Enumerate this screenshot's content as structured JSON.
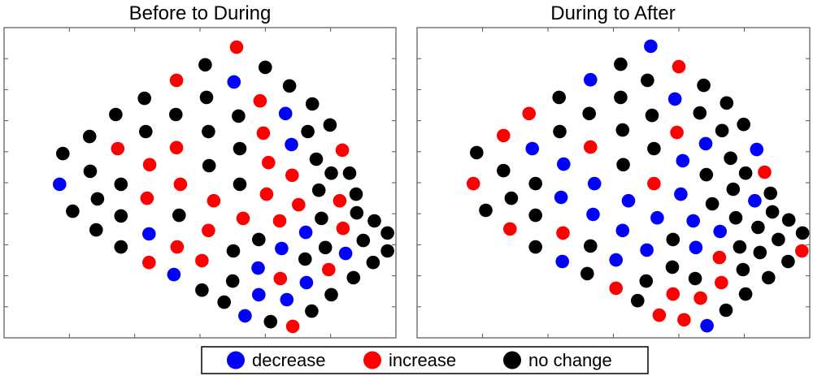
{
  "legend": {
    "position": "bottom-center",
    "items": [
      {
        "label": "decrease",
        "color": "#0000ff"
      },
      {
        "label": "increase",
        "color": "#ff0000"
      },
      {
        "label": "no change",
        "color": "#000000"
      }
    ]
  },
  "chart_data": [
    {
      "type": "scatter",
      "title": "Before to During",
      "xlabel": "",
      "ylabel": "",
      "xlim": [
        0,
        6
      ],
      "ylim": [
        0,
        10
      ],
      "x_ticks": [
        0,
        1,
        2,
        3,
        4,
        5,
        6
      ],
      "y_ticks": [
        0,
        1,
        2,
        3,
        4,
        5,
        6,
        7,
        8,
        9,
        10
      ],
      "tick_labels_shown": false,
      "grid": false,
      "points": [
        [
          3.08,
          8.8,
          "no change"
        ],
        [
          2.64,
          8.3,
          "increase"
        ],
        [
          2.15,
          7.72,
          "no change"
        ],
        [
          1.71,
          7.2,
          "no change"
        ],
        [
          2.63,
          7.2,
          "no change"
        ],
        [
          2.17,
          6.65,
          "no change"
        ],
        [
          1.31,
          6.49,
          "no change"
        ],
        [
          0.9,
          5.94,
          "no change"
        ],
        [
          1.74,
          6.1,
          "increase"
        ],
        [
          2.64,
          6.13,
          "increase"
        ],
        [
          2.23,
          5.58,
          "increase"
        ],
        [
          1.32,
          5.37,
          "no change"
        ],
        [
          0.85,
          4.95,
          "decrease"
        ],
        [
          1.79,
          4.95,
          "no change"
        ],
        [
          2.7,
          4.95,
          "increase"
        ],
        [
          1.43,
          4.48,
          "no change"
        ],
        [
          2.19,
          4.5,
          "increase"
        ],
        [
          1.05,
          4.08,
          "no change"
        ],
        [
          1.79,
          3.93,
          "no change"
        ],
        [
          2.68,
          3.95,
          "no change"
        ],
        [
          1.41,
          3.48,
          "no change"
        ],
        [
          2.22,
          3.35,
          "decrease"
        ],
        [
          1.79,
          2.93,
          "no change"
        ],
        [
          2.65,
          2.93,
          "increase"
        ],
        [
          2.22,
          2.43,
          "increase"
        ],
        [
          2.6,
          2.04,
          "decrease"
        ],
        [
          3.03,
          2.49,
          "increase"
        ],
        [
          3.03,
          1.54,
          "no change"
        ],
        [
          3.56,
          9.37,
          "increase"
        ],
        [
          4.0,
          8.72,
          "no change"
        ],
        [
          3.52,
          8.25,
          "decrease"
        ],
        [
          4.37,
          8.12,
          "no change"
        ],
        [
          3.1,
          7.75,
          "no change"
        ],
        [
          3.92,
          7.64,
          "increase"
        ],
        [
          4.72,
          7.54,
          "no change"
        ],
        [
          4.31,
          7.23,
          "decrease"
        ],
        [
          3.59,
          7.15,
          "no change"
        ],
        [
          3.13,
          6.65,
          "no change"
        ],
        [
          3.97,
          6.6,
          "increase"
        ],
        [
          4.65,
          6.65,
          "no change"
        ],
        [
          4.99,
          6.86,
          "no change"
        ],
        [
          4.4,
          6.23,
          "decrease"
        ],
        [
          3.61,
          6.1,
          "no change"
        ],
        [
          5.18,
          6.05,
          "increase"
        ],
        [
          3.14,
          5.55,
          "no change"
        ],
        [
          4.05,
          5.65,
          "increase"
        ],
        [
          4.78,
          5.76,
          "no change"
        ],
        [
          4.41,
          5.24,
          "increase"
        ],
        [
          5.01,
          5.31,
          "no change"
        ],
        [
          5.29,
          5.31,
          "no change"
        ],
        [
          3.61,
          4.95,
          "no change"
        ],
        [
          4.02,
          4.63,
          "increase"
        ],
        [
          4.82,
          4.76,
          "no change"
        ],
        [
          5.39,
          4.63,
          "no change"
        ],
        [
          3.21,
          4.42,
          "increase"
        ],
        [
          4.51,
          4.29,
          "increase"
        ],
        [
          5.14,
          4.42,
          "increase"
        ],
        [
          5.4,
          4.03,
          "no change"
        ],
        [
          3.66,
          3.85,
          "increase"
        ],
        [
          4.22,
          3.77,
          "increase"
        ],
        [
          4.86,
          3.85,
          "no change"
        ],
        [
          5.67,
          3.77,
          "no change"
        ],
        [
          3.13,
          3.46,
          "increase"
        ],
        [
          3.9,
          3.17,
          "no change"
        ],
        [
          4.62,
          3.4,
          "decrease"
        ],
        [
          5.19,
          3.53,
          "increase"
        ],
        [
          5.87,
          3.38,
          "no change"
        ],
        [
          5.5,
          3.14,
          "no change"
        ],
        [
          3.51,
          2.8,
          "no change"
        ],
        [
          4.25,
          2.88,
          "decrease"
        ],
        [
          4.92,
          2.91,
          "no change"
        ],
        [
          5.23,
          2.72,
          "decrease"
        ],
        [
          5.87,
          2.8,
          "no change"
        ],
        [
          5.65,
          2.43,
          "no change"
        ],
        [
          3.89,
          2.25,
          "decrease"
        ],
        [
          4.61,
          2.54,
          "no change"
        ],
        [
          4.97,
          2.2,
          "increase"
        ],
        [
          5.35,
          1.94,
          "no change"
        ],
        [
          3.5,
          1.83,
          "no change"
        ],
        [
          4.23,
          1.91,
          "increase"
        ],
        [
          4.63,
          1.78,
          "decrease"
        ],
        [
          3.37,
          1.15,
          "no change"
        ],
        [
          3.9,
          1.39,
          "decrease"
        ],
        [
          4.33,
          1.23,
          "decrease"
        ],
        [
          5.01,
          1.39,
          "no change"
        ],
        [
          4.71,
          0.86,
          "no change"
        ],
        [
          3.69,
          0.71,
          "decrease"
        ],
        [
          4.08,
          0.52,
          "no change"
        ],
        [
          4.42,
          0.37,
          "increase"
        ]
      ]
    },
    {
      "type": "scatter",
      "title": "During to After",
      "xlabel": "",
      "ylabel": "",
      "xlim": [
        0,
        6
      ],
      "ylim": [
        0,
        10
      ],
      "x_ticks": [
        0,
        1,
        2,
        3,
        4,
        5,
        6
      ],
      "y_ticks": [
        0,
        1,
        2,
        3,
        4,
        5,
        6,
        7,
        8,
        9,
        10
      ],
      "tick_labels_shown": false,
      "grid": false,
      "points": [
        [
          2.65,
          8.32,
          "decrease"
        ],
        [
          2.17,
          7.75,
          "no change"
        ],
        [
          1.71,
          7.23,
          "increase"
        ],
        [
          2.63,
          7.23,
          "no change"
        ],
        [
          2.18,
          6.65,
          "no change"
        ],
        [
          1.32,
          6.52,
          "increase"
        ],
        [
          1.76,
          6.1,
          "decrease"
        ],
        [
          2.65,
          6.15,
          "increase"
        ],
        [
          0.91,
          5.97,
          "no change"
        ],
        [
          2.24,
          5.6,
          "decrease"
        ],
        [
          1.32,
          5.39,
          "no change"
        ],
        [
          0.86,
          4.97,
          "increase"
        ],
        [
          1.81,
          4.97,
          "no change"
        ],
        [
          2.71,
          4.97,
          "decrease"
        ],
        [
          1.44,
          4.5,
          "no change"
        ],
        [
          2.2,
          4.53,
          "decrease"
        ],
        [
          1.05,
          4.11,
          "no change"
        ],
        [
          1.81,
          3.95,
          "no change"
        ],
        [
          2.69,
          3.98,
          "decrease"
        ],
        [
          1.42,
          3.51,
          "increase"
        ],
        [
          2.23,
          3.38,
          "increase"
        ],
        [
          1.81,
          2.93,
          "no change"
        ],
        [
          2.65,
          2.96,
          "no change"
        ],
        [
          2.22,
          2.46,
          "decrease"
        ],
        [
          2.6,
          2.07,
          "no change"
        ],
        [
          3.04,
          2.51,
          "decrease"
        ],
        [
          3.04,
          1.6,
          "increase"
        ],
        [
          3.57,
          9.4,
          "decrease"
        ],
        [
          3.11,
          8.82,
          "no change"
        ],
        [
          4.0,
          8.74,
          "increase"
        ],
        [
          3.52,
          8.3,
          "no change"
        ],
        [
          4.38,
          8.14,
          "no change"
        ],
        [
          3.11,
          7.75,
          "no change"
        ],
        [
          3.94,
          7.7,
          "decrease"
        ],
        [
          4.73,
          7.57,
          "no change"
        ],
        [
          3.59,
          7.17,
          "no change"
        ],
        [
          4.32,
          7.25,
          "no change"
        ],
        [
          3.14,
          6.7,
          "no change"
        ],
        [
          3.97,
          6.62,
          "increase"
        ],
        [
          4.66,
          6.68,
          "no change"
        ],
        [
          4.99,
          6.88,
          "no change"
        ],
        [
          4.41,
          6.26,
          "decrease"
        ],
        [
          3.62,
          6.1,
          "no change"
        ],
        [
          5.19,
          6.07,
          "decrease"
        ],
        [
          3.15,
          5.58,
          "no change"
        ],
        [
          4.06,
          5.71,
          "decrease"
        ],
        [
          4.79,
          5.79,
          "no change"
        ],
        [
          4.42,
          5.26,
          "no change"
        ],
        [
          5.02,
          5.31,
          "no change"
        ],
        [
          5.31,
          5.34,
          "increase"
        ],
        [
          3.62,
          4.97,
          "increase"
        ],
        [
          4.03,
          4.63,
          "decrease"
        ],
        [
          4.83,
          4.79,
          "no change"
        ],
        [
          5.4,
          4.66,
          "no change"
        ],
        [
          3.23,
          4.42,
          "decrease"
        ],
        [
          4.51,
          4.32,
          "no change"
        ],
        [
          5.16,
          4.42,
          "decrease"
        ],
        [
          5.43,
          4.06,
          "no change"
        ],
        [
          3.67,
          3.87,
          "decrease"
        ],
        [
          4.22,
          3.77,
          "decrease"
        ],
        [
          4.87,
          3.87,
          "no change"
        ],
        [
          5.68,
          3.8,
          "no change"
        ],
        [
          3.14,
          3.46,
          "decrease"
        ],
        [
          3.91,
          3.17,
          "no change"
        ],
        [
          4.63,
          3.43,
          "decrease"
        ],
        [
          5.21,
          3.56,
          "no change"
        ],
        [
          5.89,
          3.38,
          "no change"
        ],
        [
          5.52,
          3.17,
          "no change"
        ],
        [
          3.51,
          2.83,
          "decrease"
        ],
        [
          4.26,
          2.91,
          "decrease"
        ],
        [
          4.93,
          2.93,
          "no change"
        ],
        [
          5.24,
          2.75,
          "no change"
        ],
        [
          5.88,
          2.8,
          "increase"
        ],
        [
          5.67,
          2.46,
          "no change"
        ],
        [
          4.62,
          2.59,
          "increase"
        ],
        [
          3.9,
          2.28,
          "no change"
        ],
        [
          4.98,
          2.2,
          "no change"
        ],
        [
          5.37,
          1.94,
          "no change"
        ],
        [
          3.5,
          1.83,
          "no change"
        ],
        [
          4.25,
          1.91,
          "no change"
        ],
        [
          4.65,
          1.78,
          "increase"
        ],
        [
          3.37,
          1.2,
          "no change"
        ],
        [
          3.91,
          1.41,
          "increase"
        ],
        [
          4.33,
          1.28,
          "increase"
        ],
        [
          5.02,
          1.41,
          "no change"
        ],
        [
          4.72,
          0.89,
          "no change"
        ],
        [
          3.7,
          0.73,
          "increase"
        ],
        [
          4.08,
          0.58,
          "increase"
        ],
        [
          4.43,
          0.39,
          "decrease"
        ]
      ]
    }
  ]
}
